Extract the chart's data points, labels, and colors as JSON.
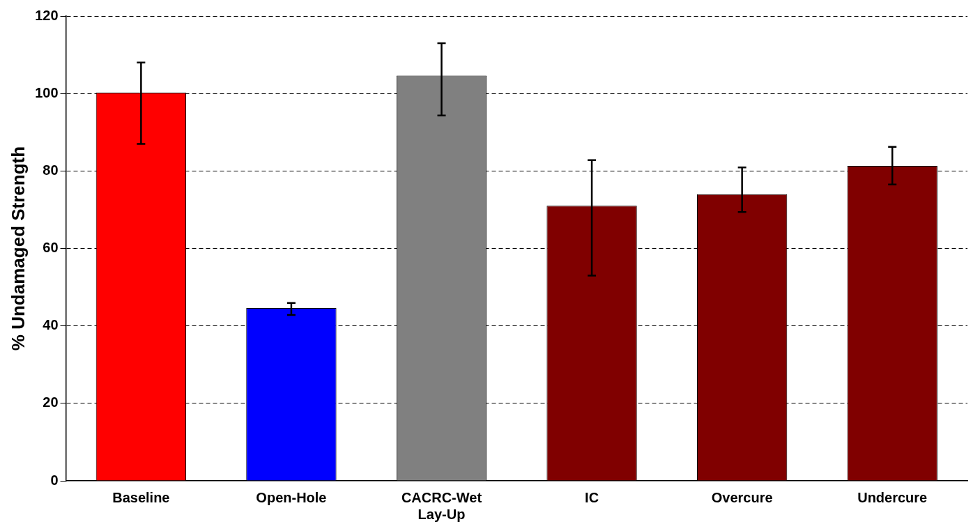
{
  "chart_data": {
    "type": "bar",
    "ylabel": "% Undamaged Strength",
    "categories": [
      "Baseline",
      "Open-Hole",
      "CACRC-Wet Lay-Up",
      "IC",
      "Overcure",
      "Undercure"
    ],
    "values": [
      100.2,
      44.6,
      104.6,
      71,
      74,
      81.3
    ],
    "colors": [
      "#ff0000",
      "#0000ff",
      "#808080",
      "#800000",
      "#800000",
      "#800000"
    ],
    "errors": [
      [
        87,
        108
      ],
      [
        42.8,
        45.9
      ],
      [
        94.3,
        113
      ],
      [
        53,
        82.8
      ],
      [
        69.4,
        80.9
      ],
      [
        76.5,
        86.2
      ]
    ],
    "ylim": [
      0,
      120
    ],
    "yticks": [
      0,
      20,
      40,
      60,
      80,
      100,
      120
    ],
    "grid": "y",
    "legend": false
  }
}
